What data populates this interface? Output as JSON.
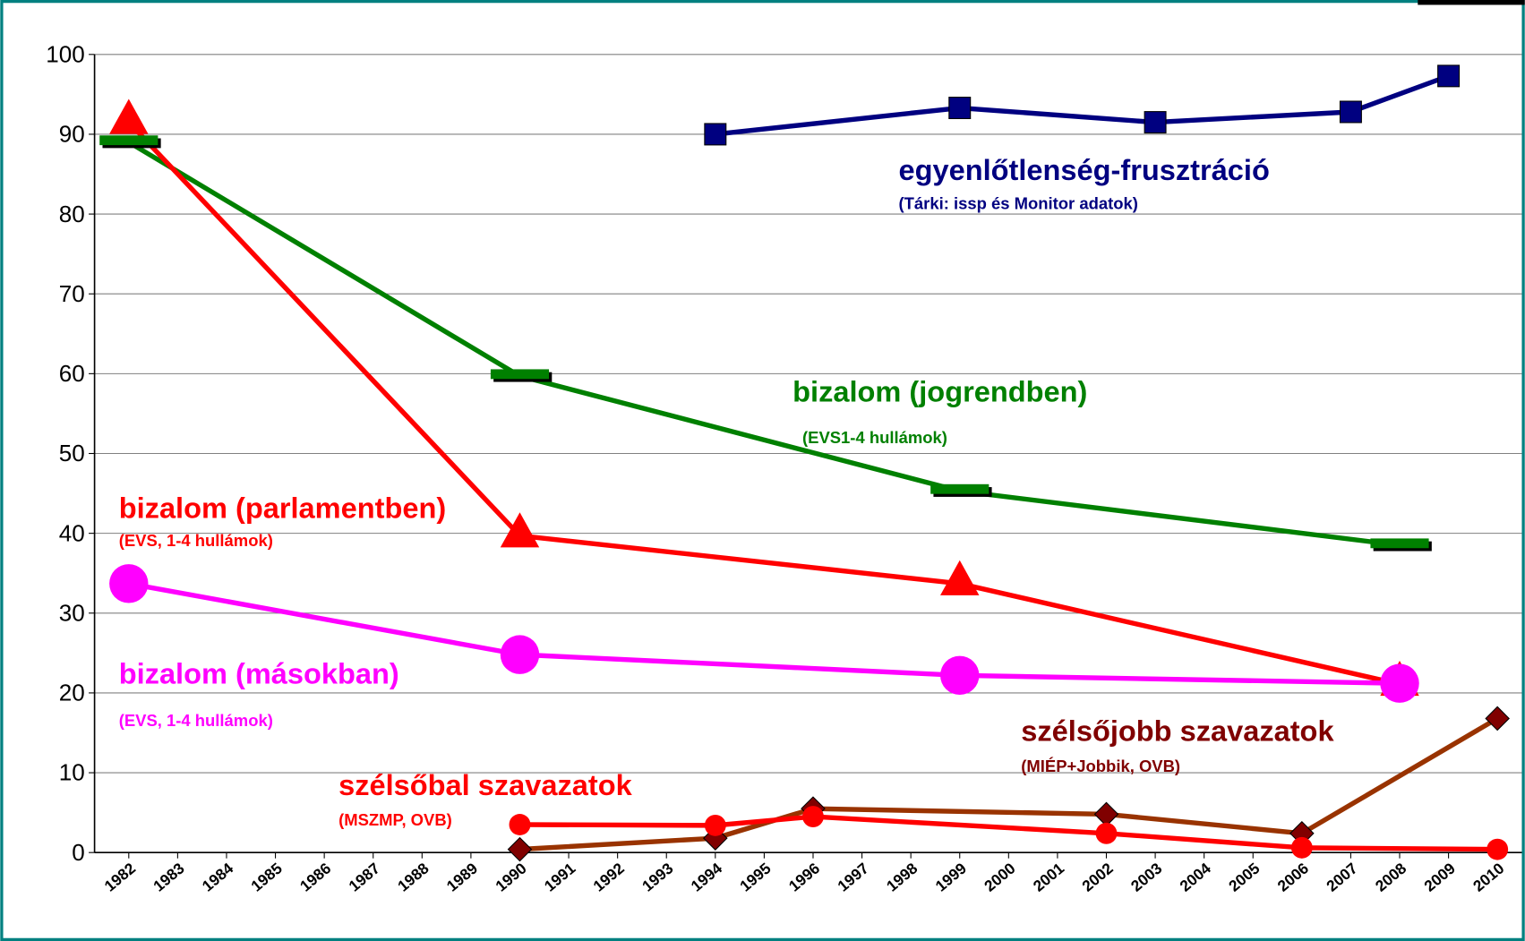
{
  "chart_data": {
    "type": "line",
    "xlim": [
      1981.3,
      2010.5
    ],
    "xticks": [
      1982,
      1983,
      1984,
      1985,
      1986,
      1987,
      1988,
      1989,
      1990,
      1991,
      1992,
      1993,
      1994,
      1995,
      1996,
      1997,
      1998,
      1999,
      2000,
      2001,
      2002,
      2003,
      2004,
      2005,
      2006,
      2007,
      2008,
      2009,
      2010
    ],
    "ylim": [
      0,
      100
    ],
    "yticks": [
      0,
      10,
      20,
      30,
      40,
      50,
      60,
      70,
      80,
      90,
      100
    ],
    "grid": true,
    "series": [
      {
        "name": "egyenlőtlenség-frusztráció",
        "source": "(Tárki: issp és Monitor adatok)",
        "color": "#000080",
        "marker_color": "#000080",
        "marker": "square",
        "x": [
          1994,
          1999,
          2003,
          2007,
          2009
        ],
        "values": [
          90,
          93.3,
          91.5,
          92.8,
          97.3
        ]
      },
      {
        "name": "bizalom (jogrendben)",
        "source": "(EVS1-4 hullámok)",
        "color": "#008000",
        "marker_color": "#008000",
        "marker": "dash",
        "x": [
          1982,
          1990,
          1999,
          2008
        ],
        "values": [
          89,
          59.7,
          45.3,
          38.5
        ]
      },
      {
        "name": "bizalom (parlamentben)",
        "source": "(EVS, 1-4 hullámok)",
        "color": "#ff0000",
        "marker_color": "#ff0000",
        "marker": "triangle",
        "x": [
          1982,
          1990,
          1999,
          2008
        ],
        "values": [
          91.5,
          39.7,
          33.7,
          21.1
        ]
      },
      {
        "name": "bizalom (másokban)",
        "source": "(EVS, 1-4 hullámok)",
        "color": "#ff00ff",
        "marker_color": "#ff00ff",
        "marker": "circle",
        "x": [
          1982,
          1990,
          1999,
          2008
        ],
        "values": [
          33.7,
          24.8,
          22.2,
          21.2
        ]
      },
      {
        "name": "szélsőjobb szavazatok",
        "source": "(MIÉP+Jobbik, OVB)",
        "color": "#993300",
        "marker_color": "#800000",
        "marker": "diamond",
        "x": [
          1990,
          1994,
          1996,
          2002,
          2006,
          2010
        ],
        "values": [
          0.4,
          1.8,
          5.5,
          4.8,
          2.4,
          16.8
        ]
      },
      {
        "name": "szélsőbal szavazatok",
        "source": "(MSZMP, OVB)",
        "color": "#ff0000",
        "marker_color": "#ff0000",
        "marker": "dot",
        "x": [
          1990,
          1994,
          1996,
          2002,
          2006,
          2010
        ],
        "values": [
          3.5,
          3.4,
          4.5,
          2.4,
          0.6,
          0.4
        ]
      }
    ]
  }
}
